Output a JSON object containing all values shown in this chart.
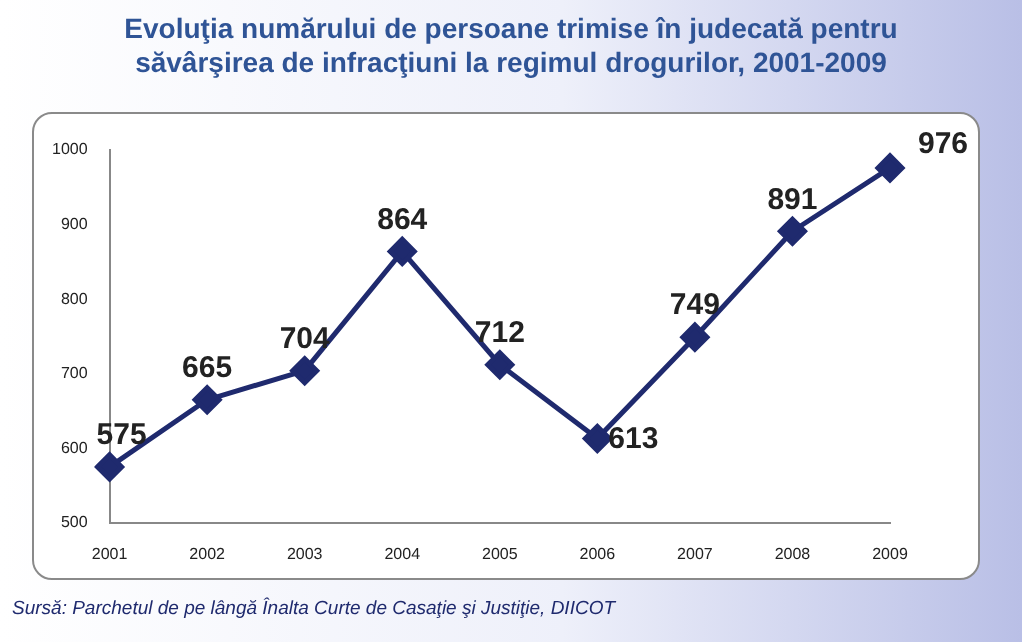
{
  "chart_data": {
    "type": "line",
    "title": "Evoluţia numărului de persoane trimise în judecată pentru\nsăvârşirea de infracţiuni la regimul drogurilor, 2001-2009",
    "categories": [
      "2001",
      "2002",
      "2003",
      "2004",
      "2005",
      "2006",
      "2007",
      "2008",
      "2009"
    ],
    "values": [
      575,
      665,
      704,
      864,
      712,
      613,
      749,
      891,
      976
    ],
    "color": "#1f2a6e",
    "marker": "diamond",
    "data_labels": true,
    "ylim": [
      500,
      1000
    ],
    "yticks": [
      500,
      600,
      700,
      800,
      900,
      1000
    ],
    "grid": false,
    "legend": false,
    "annotations": [
      "Sursă: Parchetul de pe lângă Înalta Curte de Casaţie şi Justiţie, DIICOT"
    ]
  }
}
